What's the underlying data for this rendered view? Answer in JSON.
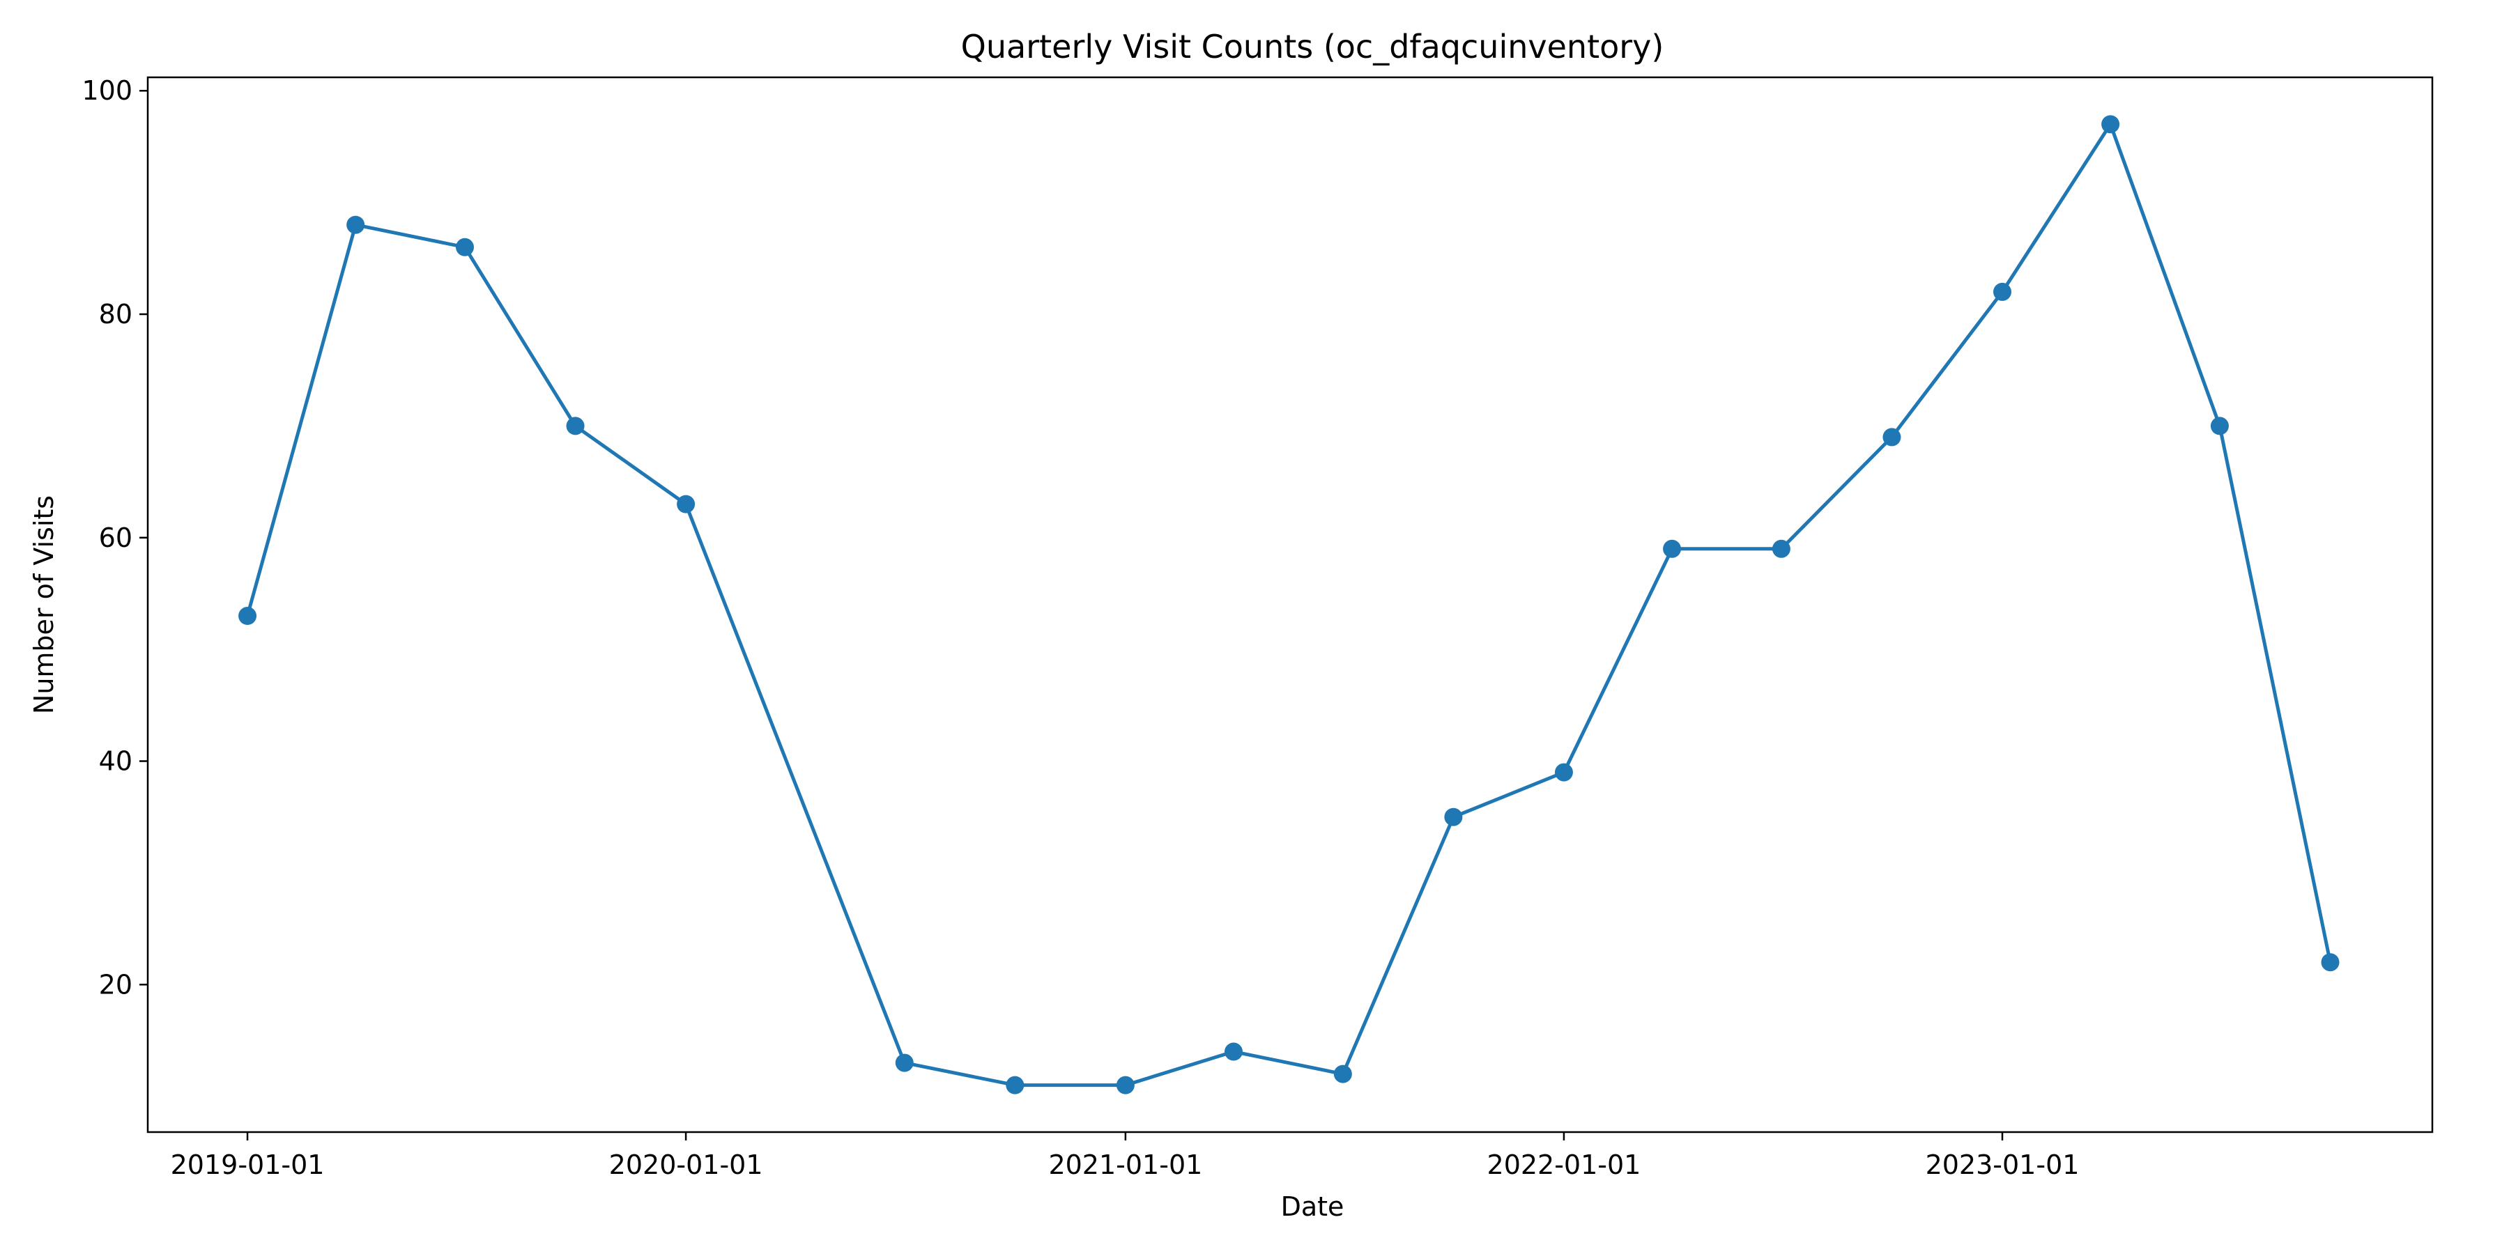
{
  "chart_data": {
    "type": "line",
    "title": "Quarterly Visit Counts (oc_dfaqcuinventory)",
    "xlabel": "Date",
    "ylabel": "Number of Visits",
    "x_tick_labels": [
      "2019-01-01",
      "2020-01-01",
      "2021-01-01",
      "2022-01-01",
      "2023-01-01"
    ],
    "y_ticks": [
      20,
      40,
      60,
      80,
      100
    ],
    "ylim": [
      6.8,
      101.2
    ],
    "xlim": [
      "2018-10-10",
      "2023-12-25"
    ],
    "grid": false,
    "legend": "none",
    "series": [
      {
        "color": "#1f77b4",
        "marker": "circle",
        "points": [
          {
            "x": "2019-01-01",
            "y": 53
          },
          {
            "x": "2019-04-01",
            "y": 88
          },
          {
            "x": "2019-07-01",
            "y": 86
          },
          {
            "x": "2019-10-01",
            "y": 70
          },
          {
            "x": "2020-01-01",
            "y": 63
          },
          {
            "x": "2020-07-01",
            "y": 13
          },
          {
            "x": "2020-10-01",
            "y": 11
          },
          {
            "x": "2021-01-01",
            "y": 11
          },
          {
            "x": "2021-04-01",
            "y": 14
          },
          {
            "x": "2021-07-01",
            "y": 12
          },
          {
            "x": "2021-10-01",
            "y": 35
          },
          {
            "x": "2022-01-01",
            "y": 39
          },
          {
            "x": "2022-04-01",
            "y": 59
          },
          {
            "x": "2022-07-01",
            "y": 59
          },
          {
            "x": "2022-10-01",
            "y": 69
          },
          {
            "x": "2023-01-01",
            "y": 82
          },
          {
            "x": "2023-04-01",
            "y": 97
          },
          {
            "x": "2023-07-01",
            "y": 70
          },
          {
            "x": "2023-10-01",
            "y": 22
          }
        ]
      }
    ]
  }
}
